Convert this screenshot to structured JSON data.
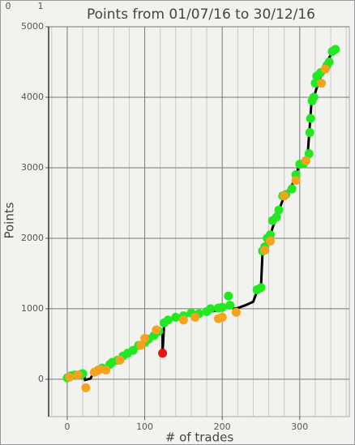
{
  "chart_data": {
    "type": "mixed",
    "corner_labels": [
      "0",
      "1"
    ],
    "title": "Points from 01/07/16 to 30/12/16",
    "x_label": "# of trades",
    "y_label": "Points",
    "xlim": [
      -24,
      364
    ],
    "ylim": [
      -530,
      5000
    ],
    "xticks": [
      0,
      100,
      200,
      300
    ],
    "yticks": [
      0,
      1000,
      2000,
      3000,
      4000,
      5000
    ],
    "x_minor_ticks": [
      -20,
      20,
      40,
      60,
      80,
      120,
      140,
      160,
      180,
      220,
      240,
      260,
      280,
      320,
      340,
      360
    ],
    "grid": true,
    "series": [
      {
        "type": "line",
        "color": "#000000",
        "x": [
          0,
          5,
          10,
          20,
          22,
          23,
          30,
          35,
          50,
          70,
          90,
          110,
          120,
          123,
          123,
          125,
          130,
          150,
          180,
          200,
          210,
          215,
          220,
          230,
          240,
          245,
          250,
          252,
          260,
          265,
          280,
          290,
          300,
          310,
          315,
          330,
          345
        ],
        "y": [
          20,
          50,
          60,
          70,
          80,
          -10,
          10,
          110,
          180,
          300,
          450,
          600,
          680,
          680,
          370,
          780,
          830,
          900,
          950,
          990,
          1050,
          1000,
          1010,
          1050,
          1100,
          1250,
          1300,
          1800,
          1950,
          2150,
          2600,
          2750,
          3050,
          3150,
          3900,
          4400,
          4700
        ]
      },
      {
        "type": "scatter",
        "color": "#22e822",
        "x": [
          0,
          5,
          10,
          18,
          20,
          40,
          45,
          55,
          58,
          65,
          72,
          78,
          85,
          92,
          100,
          105,
          112,
          118,
          125,
          130,
          140,
          150,
          160,
          170,
          180,
          185,
          195,
          200,
          208,
          210,
          245,
          250,
          252,
          255,
          258,
          262,
          265,
          270,
          273,
          278,
          282,
          290,
          295,
          300,
          305,
          312,
          313,
          314,
          316,
          318,
          320,
          322,
          327,
          335,
          338,
          342,
          346
        ],
        "y": [
          20,
          50,
          60,
          70,
          80,
          130,
          160,
          210,
          240,
          270,
          330,
          370,
          410,
          480,
          520,
          570,
          620,
          680,
          800,
          840,
          880,
          900,
          940,
          930,
          960,
          1000,
          1010,
          1020,
          1180,
          1050,
          1270,
          1300,
          1820,
          1880,
          2000,
          2050,
          2250,
          2300,
          2400,
          2600,
          2620,
          2700,
          2900,
          3050,
          3060,
          3200,
          3500,
          3700,
          3950,
          4000,
          4200,
          4300,
          4350,
          4450,
          4500,
          4650,
          4680
        ]
      },
      {
        "type": "scatter",
        "color": "#f5a21c",
        "x": [
          3,
          14,
          24,
          35,
          42,
          50,
          68,
          95,
          100,
          115,
          150,
          165,
          195,
          200,
          218,
          255,
          262,
          280,
          295,
          308,
          328,
          333
        ],
        "y": [
          30,
          60,
          -120,
          100,
          140,
          130,
          270,
          480,
          580,
          700,
          840,
          880,
          860,
          880,
          950,
          1830,
          1960,
          2600,
          2820,
          3100,
          4200,
          4400
        ]
      },
      {
        "type": "scatter",
        "color": "#ee1111",
        "x": [
          123
        ],
        "y": [
          370
        ]
      }
    ]
  }
}
